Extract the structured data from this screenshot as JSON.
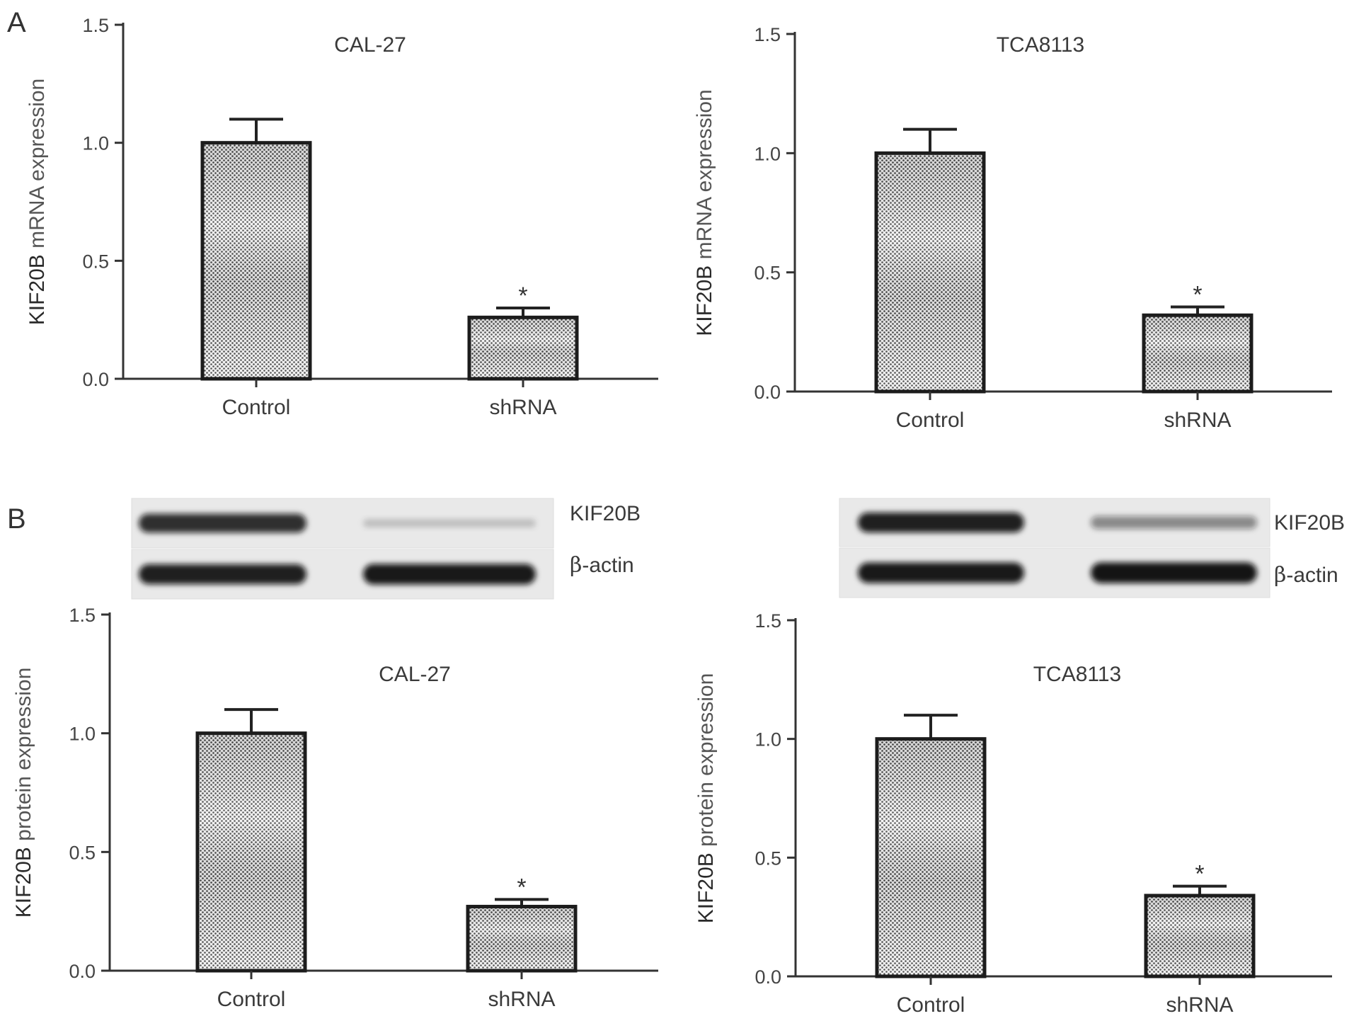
{
  "panel_labels": [
    "A",
    "B"
  ],
  "blots": [
    {
      "cell_line": "CAL-27",
      "rows": [
        {
          "label_prefix": "",
          "label_text": "KIF20B",
          "control_intensity": 0.85,
          "shrna_intensity": 0.18
        },
        {
          "label_prefix": "β",
          "label_text": "-actin",
          "control_intensity": 0.92,
          "shrna_intensity": 0.95
        }
      ]
    },
    {
      "cell_line": "TCA8113",
      "rows": [
        {
          "label_prefix": "",
          "label_text": "KIF20B",
          "control_intensity": 0.92,
          "shrna_intensity": 0.45
        },
        {
          "label_prefix": "β",
          "label_text": "-actin",
          "control_intensity": 0.95,
          "shrna_intensity": 0.97
        }
      ]
    }
  ],
  "chart_data": [
    {
      "type": "bar",
      "panel": "A",
      "title": "CAL-27",
      "ylabel_bold": "KIF20B",
      "ylabel_rest": " mRNA expression",
      "categories": [
        "Control",
        "shRNA"
      ],
      "values": [
        1.0,
        0.26
      ],
      "errors": [
        0.1,
        0.04
      ],
      "significance": [
        "",
        "*"
      ],
      "ylim": [
        0,
        1.5
      ],
      "yticks": [
        "0.0",
        "0.5",
        "1.0",
        "1.5"
      ]
    },
    {
      "type": "bar",
      "panel": "A",
      "title": "TCA8113",
      "ylabel_bold": "KIF20B",
      "ylabel_rest": " mRNA expression",
      "categories": [
        "Control",
        "shRNA"
      ],
      "values": [
        1.0,
        0.32
      ],
      "errors": [
        0.1,
        0.035
      ],
      "significance": [
        "",
        "*"
      ],
      "ylim": [
        0,
        1.5
      ],
      "yticks": [
        "0.0",
        "0.5",
        "1.0",
        "1.5"
      ]
    },
    {
      "type": "bar",
      "panel": "B",
      "title": "CAL-27",
      "ylabel_bold": "KIF20B",
      "ylabel_rest": " protein expression",
      "categories": [
        "Control",
        "shRNA"
      ],
      "values": [
        1.0,
        0.27
      ],
      "errors": [
        0.1,
        0.03
      ],
      "significance": [
        "",
        "*"
      ],
      "ylim": [
        0,
        1.5
      ],
      "yticks": [
        "0.0",
        "0.5",
        "1.0",
        "1.5"
      ]
    },
    {
      "type": "bar",
      "panel": "B",
      "title": "TCA8113",
      "ylabel_bold": "KIF20B",
      "ylabel_rest": " protein expression",
      "categories": [
        "Control",
        "shRNA"
      ],
      "values": [
        1.0,
        0.34
      ],
      "errors": [
        0.1,
        0.04
      ],
      "significance": [
        "",
        "*"
      ],
      "ylim": [
        0,
        1.5
      ],
      "yticks": [
        "0.0",
        "0.5",
        "1.0",
        "1.5"
      ]
    }
  ]
}
